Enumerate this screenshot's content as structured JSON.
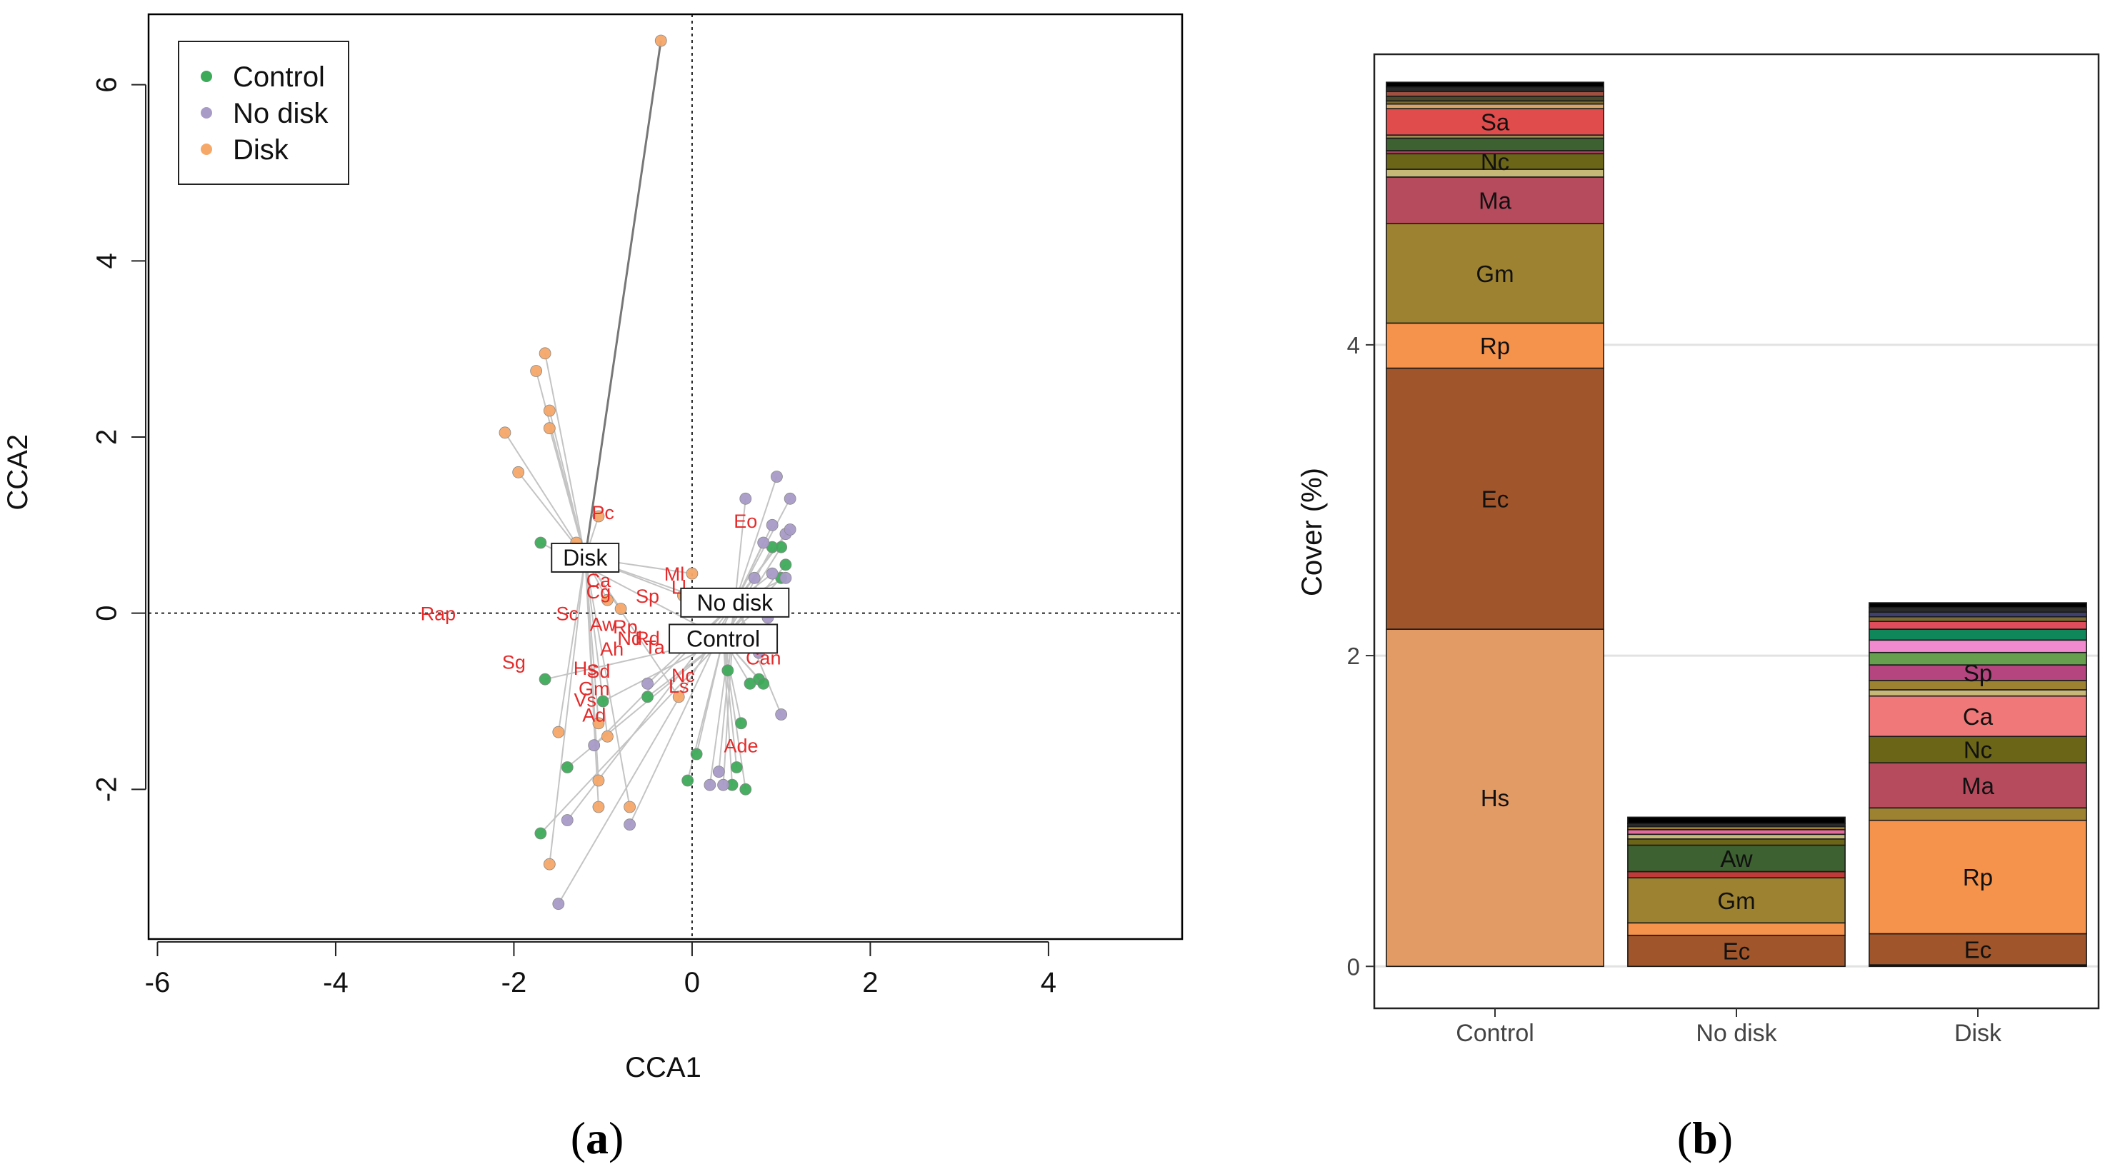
{
  "panels": {
    "a": {
      "label_open": "(",
      "label_letter": "a",
      "label_close": ")"
    },
    "b": {
      "label_open": "(",
      "label_letter": "b",
      "label_close": ")"
    }
  },
  "chart_data": [
    {
      "type": "scatter",
      "panel": "a",
      "xlabel": "CCA1",
      "ylabel": "CCA2",
      "xlim": [
        -6.1,
        5.5
      ],
      "ylim": [
        -3.7,
        6.8
      ],
      "x_ticks": [
        -6,
        -4,
        -2,
        0,
        2,
        4
      ],
      "y_ticks": [
        -2,
        0,
        2,
        4,
        6
      ],
      "grid": false,
      "reference_lines": {
        "x": 0,
        "y": 0,
        "style": "dotted"
      },
      "legend": {
        "position": "top-left",
        "entries": [
          {
            "name": "Control",
            "color": "#3daa5a"
          },
          {
            "name": "No disk",
            "color": "#a89bc8"
          },
          {
            "name": "Disk",
            "color": "#f6a868"
          }
        ]
      },
      "centroids": [
        {
          "label": "Disk",
          "x": -1.2,
          "y": 0.63
        },
        {
          "label": "No disk",
          "x": 0.48,
          "y": 0.12
        },
        {
          "label": "Control",
          "x": 0.35,
          "y": -0.29
        }
      ],
      "series": [
        {
          "name": "Control",
          "color": "#3daa5a",
          "points": [
            [
              -1.7,
              0.8
            ],
            [
              -1.65,
              -0.75
            ],
            [
              -1.7,
              -2.5
            ],
            [
              -1.4,
              -1.75
            ],
            [
              -1.0,
              -1.0
            ],
            [
              -0.5,
              -0.95
            ],
            [
              0.05,
              -1.6
            ],
            [
              -0.05,
              -1.9
            ],
            [
              0.4,
              -0.65
            ],
            [
              0.45,
              -1.95
            ],
            [
              0.5,
              -1.75
            ],
            [
              0.55,
              -1.25
            ],
            [
              0.6,
              -2.0
            ],
            [
              0.65,
              -0.8
            ],
            [
              0.75,
              0.05
            ],
            [
              0.75,
              -0.75
            ],
            [
              0.8,
              -0.8
            ],
            [
              0.85,
              -0.3
            ],
            [
              0.9,
              0.75
            ],
            [
              1.0,
              0.75
            ],
            [
              1.0,
              0.4
            ],
            [
              1.05,
              0.55
            ]
          ]
        },
        {
          "name": "No disk",
          "color": "#a89bc8",
          "points": [
            [
              -1.5,
              -3.3
            ],
            [
              -1.4,
              -2.35
            ],
            [
              -1.1,
              -1.5
            ],
            [
              -0.7,
              -2.4
            ],
            [
              -0.5,
              -0.8
            ],
            [
              0.2,
              -1.95
            ],
            [
              0.3,
              -1.8
            ],
            [
              0.35,
              -1.95
            ],
            [
              0.6,
              1.3
            ],
            [
              0.7,
              0.4
            ],
            [
              0.8,
              0.8
            ],
            [
              0.9,
              0.45
            ],
            [
              0.9,
              1.0
            ],
            [
              0.95,
              1.55
            ],
            [
              1.0,
              -1.15
            ],
            [
              1.05,
              0.9
            ],
            [
              1.05,
              0.4
            ],
            [
              1.1,
              0.95
            ],
            [
              1.1,
              1.3
            ],
            [
              0.85,
              -0.05
            ],
            [
              0.5,
              0.15
            ],
            [
              0.75,
              -0.45
            ]
          ]
        },
        {
          "name": "Disk",
          "color": "#f6a868",
          "points": [
            [
              -0.35,
              6.5
            ],
            [
              -1.75,
              2.75
            ],
            [
              -1.65,
              2.95
            ],
            [
              -1.6,
              2.3
            ],
            [
              -1.6,
              2.1
            ],
            [
              -2.1,
              2.05
            ],
            [
              -1.95,
              1.6
            ],
            [
              -1.3,
              0.8
            ],
            [
              -1.05,
              1.1
            ],
            [
              -0.95,
              0.15
            ],
            [
              -0.8,
              0.05
            ],
            [
              -1.5,
              -1.35
            ],
            [
              -1.6,
              -2.85
            ],
            [
              -1.05,
              -1.25
            ],
            [
              -0.95,
              -1.4
            ],
            [
              -1.05,
              -1.9
            ],
            [
              -1.05,
              -2.2
            ],
            [
              -0.7,
              -2.2
            ],
            [
              -0.15,
              -0.95
            ],
            [
              0.0,
              0.45
            ],
            [
              -0.1,
              0.2
            ],
            [
              0.15,
              0.15
            ]
          ]
        }
      ],
      "species_labels": [
        {
          "text": "Pc",
          "x": -1.0,
          "y": 1.15
        },
        {
          "text": "Eo",
          "x": 0.6,
          "y": 1.05
        },
        {
          "text": "Ml",
          "x": -0.2,
          "y": 0.45
        },
        {
          "text": "Ll",
          "x": -0.15,
          "y": 0.3
        },
        {
          "text": "Sp",
          "x": -0.5,
          "y": 0.2
        },
        {
          "text": "Cg",
          "x": -1.05,
          "y": 0.25
        },
        {
          "text": "Ca",
          "x": -1.05,
          "y": 0.38
        },
        {
          "text": "Sc",
          "x": -1.4,
          "y": 0.0
        },
        {
          "text": "Aw",
          "x": -1.0,
          "y": -0.12
        },
        {
          "text": "Rp",
          "x": -0.75,
          "y": -0.15
        },
        {
          "text": "Nd",
          "x": -0.7,
          "y": -0.28
        },
        {
          "text": "Rd",
          "x": -0.5,
          "y": -0.28
        },
        {
          "text": "Ta",
          "x": -0.42,
          "y": -0.38
        },
        {
          "text": "Ah",
          "x": -0.9,
          "y": -0.4
        },
        {
          "text": "Sg",
          "x": -2.0,
          "y": -0.55
        },
        {
          "text": "Hs",
          "x": -1.2,
          "y": -0.62
        },
        {
          "text": "Sd",
          "x": -1.05,
          "y": -0.65
        },
        {
          "text": "Nc",
          "x": -0.1,
          "y": -0.7
        },
        {
          "text": "Ls",
          "x": -0.15,
          "y": -0.82
        },
        {
          "text": "Gm",
          "x": -1.1,
          "y": -0.85
        },
        {
          "text": "Vs",
          "x": -1.2,
          "y": -0.98
        },
        {
          "text": "Ad",
          "x": -1.1,
          "y": -1.15
        },
        {
          "text": "Ade",
          "x": 0.55,
          "y": -1.5
        },
        {
          "text": "Can",
          "x": 0.8,
          "y": -0.5
        },
        {
          "text": "Rap",
          "x": -2.85,
          "y": 0.0
        }
      ]
    },
    {
      "type": "bar",
      "stacked": true,
      "panel": "b",
      "xlabel": "",
      "ylabel": "Cover (%)",
      "categories": [
        "Control",
        "No disk",
        "Disk"
      ],
      "ylim": [
        -0.27,
        5.87
      ],
      "y_ticks": [
        0,
        2,
        4
      ],
      "grid": true,
      "stacks": [
        [
          {
            "label": "Hs",
            "value": 2.17,
            "color": "#e39b66"
          },
          {
            "label": "Ec",
            "value": 1.68,
            "color": "#a0552a"
          },
          {
            "label": "Rp",
            "value": 0.29,
            "color": "#f5924c"
          },
          {
            "label": "Gm",
            "value": 0.64,
            "color": "#9d8231"
          },
          {
            "label": "Ma",
            "value": 0.3,
            "color": "#b54b5d"
          },
          {
            "label": "",
            "value": 0.05,
            "color": "#c6b877"
          },
          {
            "label": "Nc",
            "value": 0.1,
            "color": "#6b6518"
          },
          {
            "label": "",
            "value": 0.02,
            "color": "#a3425e"
          },
          {
            "label": "",
            "value": 0.08,
            "color": "#3d6130"
          },
          {
            "label": "",
            "value": 0.02,
            "color": "#9b8e57"
          },
          {
            "label": "Sa",
            "value": 0.17,
            "color": "#e04c4c"
          },
          {
            "label": "",
            "value": 0.03,
            "color": "#d8a468"
          },
          {
            "label": "",
            "value": 0.02,
            "color": "#7c6a34"
          },
          {
            "label": "",
            "value": 0.03,
            "color": "#4a4a2a"
          },
          {
            "label": "",
            "value": 0.03,
            "color": "#a05040"
          },
          {
            "label": "",
            "value": 0.03,
            "color": "#2a2a2a"
          },
          {
            "label": "",
            "value": 0.03,
            "color": "#000000"
          }
        ],
        [
          {
            "label": "Ec",
            "value": 0.2,
            "color": "#a0552a"
          },
          {
            "label": "",
            "value": 0.08,
            "color": "#f5924c"
          },
          {
            "label": "Gm",
            "value": 0.29,
            "color": "#9d8231"
          },
          {
            "label": "",
            "value": 0.04,
            "color": "#c03a3a"
          },
          {
            "label": "Aw",
            "value": 0.17,
            "color": "#3d6130"
          },
          {
            "label": "",
            "value": 0.04,
            "color": "#6b6518"
          },
          {
            "label": "",
            "value": 0.03,
            "color": "#c6b877"
          },
          {
            "label": "",
            "value": 0.03,
            "color": "#e26a9c"
          },
          {
            "label": "",
            "value": 0.02,
            "color": "#9d8231"
          },
          {
            "label": "",
            "value": 0.02,
            "color": "#2a2a2a"
          },
          {
            "label": "",
            "value": 0.04,
            "color": "#000000"
          }
        ],
        [
          {
            "label": "",
            "value": 0.01,
            "color": "#000000"
          },
          {
            "label": "Ec",
            "value": 0.2,
            "color": "#a0552a"
          },
          {
            "label": "Rp",
            "value": 0.73,
            "color": "#f5924c"
          },
          {
            "label": "",
            "value": 0.08,
            "color": "#9d8231"
          },
          {
            "label": "Ma",
            "value": 0.29,
            "color": "#b54b5d"
          },
          {
            "label": "Nc",
            "value": 0.17,
            "color": "#6b6518"
          },
          {
            "label": "Ca",
            "value": 0.26,
            "color": "#f07878"
          },
          {
            "label": "",
            "value": 0.04,
            "color": "#c6b877"
          },
          {
            "label": "",
            "value": 0.06,
            "color": "#9d8231"
          },
          {
            "label": "Sp",
            "value": 0.1,
            "color": "#b5457e"
          },
          {
            "label": "",
            "value": 0.08,
            "color": "#66a04e"
          },
          {
            "label": "",
            "value": 0.08,
            "color": "#f28ad0"
          },
          {
            "label": "",
            "value": 0.07,
            "color": "#10875a"
          },
          {
            "label": "",
            "value": 0.05,
            "color": "#e04c5c"
          },
          {
            "label": "",
            "value": 0.03,
            "color": "#7c6a34"
          },
          {
            "label": "",
            "value": 0.03,
            "color": "#404070"
          },
          {
            "label": "",
            "value": 0.03,
            "color": "#2a2a2a"
          },
          {
            "label": "",
            "value": 0.03,
            "color": "#000000"
          }
        ]
      ]
    }
  ]
}
